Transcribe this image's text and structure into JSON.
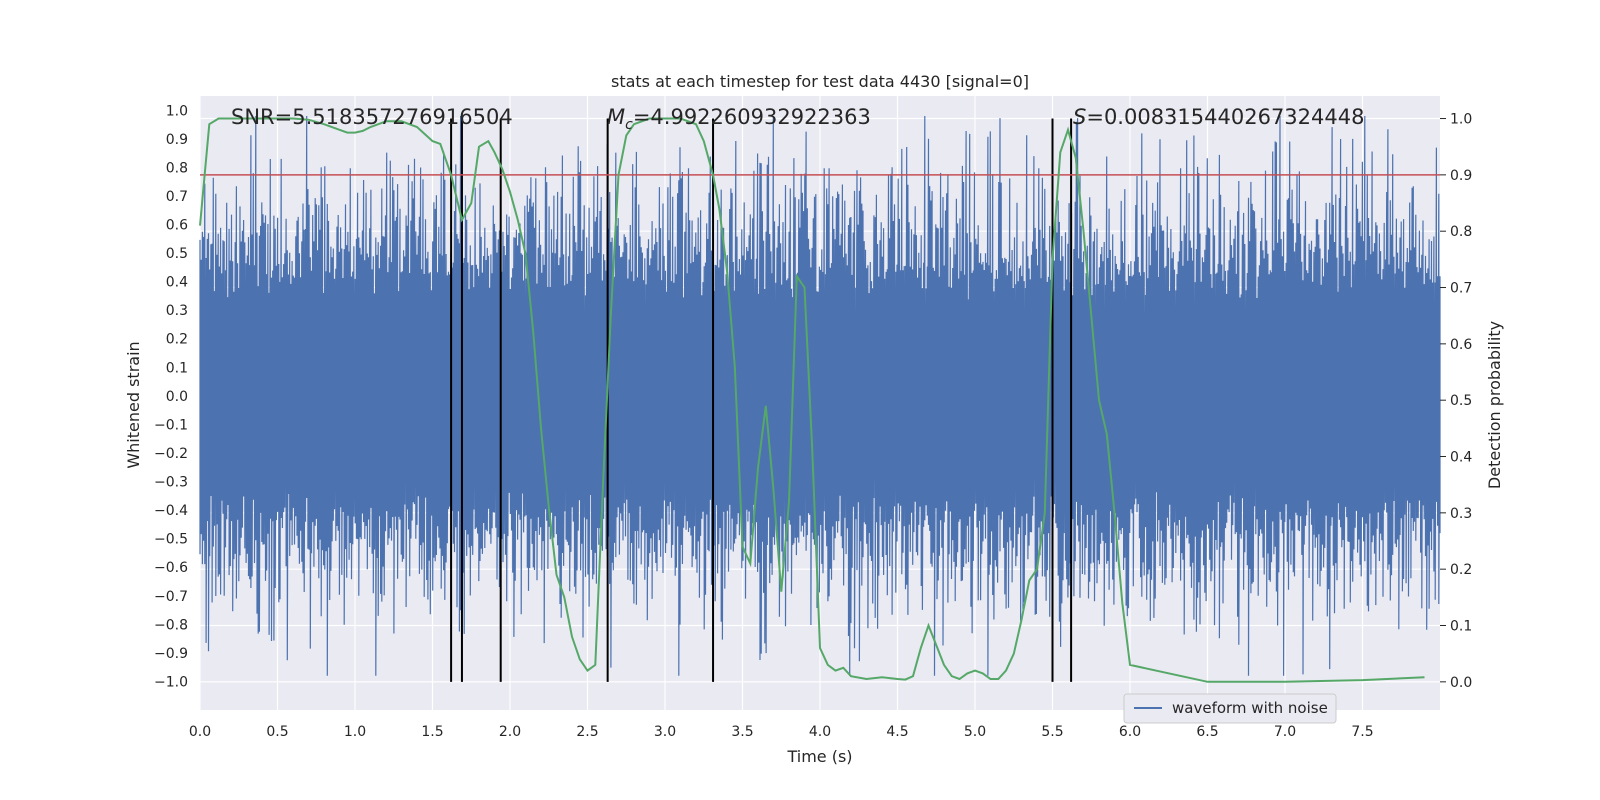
{
  "chart_data": {
    "type": "line",
    "title": "stats at each timestep for test data 4430 [signal=0]",
    "xlabel": "Time (s)",
    "ylabel_left": "Whitened strain",
    "ylabel_right": "Detection probability",
    "xlim": [
      0,
      8
    ],
    "ylim_left": [
      -1.1,
      1.05
    ],
    "ylim_right": [
      -0.05,
      1.04
    ],
    "xticks": [
      "0.0",
      "0.5",
      "1.0",
      "1.5",
      "2.0",
      "2.5",
      "3.0",
      "3.5",
      "4.0",
      "4.5",
      "5.0",
      "5.5",
      "6.0",
      "6.5",
      "7.0",
      "7.5"
    ],
    "yticks_left": [
      "1.0",
      "0.9",
      "0.8",
      "0.7",
      "0.6",
      "0.5",
      "0.4",
      "0.3",
      "0.2",
      "0.1",
      "0.0",
      "-0.1",
      "-0.2",
      "-0.3",
      "-0.4",
      "-0.5",
      "-0.6",
      "-0.7",
      "-0.8",
      "-0.9",
      "-1.0"
    ],
    "yticks_right": [
      "1.0",
      "0.9",
      "0.8",
      "0.7",
      "0.6",
      "0.5",
      "0.4",
      "0.3",
      "0.2",
      "0.1",
      "0.0"
    ],
    "grid": true,
    "legend": {
      "position": "lower-right",
      "entries": [
        "waveform with noise"
      ]
    },
    "stats_text": {
      "snr": "SNR=5.518357276916504",
      "mc_symbol": "M",
      "mc_subscript": "c",
      "mc_value": "=4.992260932922363",
      "s_symbol": "S",
      "s_value": "=0.008315440267324448"
    },
    "threshold_line": {
      "y_right": 0.9,
      "color": "#c44e52"
    },
    "vertical_markers_s": [
      1.62,
      1.69,
      1.94,
      2.63,
      3.31,
      5.5,
      5.62
    ],
    "series": [
      {
        "name": "waveform with noise",
        "axis": "left",
        "color": "#4c72b0",
        "kind": "noise_band",
        "typical_amplitude": 0.6,
        "max_abs": 0.98,
        "n_samples": 1024
      },
      {
        "axis": "right",
        "color": "#55a868",
        "x": [
          0.0,
          0.06,
          0.12,
          0.2,
          0.3,
          0.4,
          0.5,
          0.6,
          0.7,
          0.8,
          0.9,
          0.95,
          1.0,
          1.05,
          1.1,
          1.2,
          1.3,
          1.4,
          1.5,
          1.55,
          1.62,
          1.69,
          1.75,
          1.8,
          1.86,
          1.9,
          1.95,
          2.0,
          2.05,
          2.1,
          2.15,
          2.2,
          2.25,
          2.3,
          2.35,
          2.4,
          2.45,
          2.5,
          2.55,
          2.6,
          2.65,
          2.7,
          2.75,
          2.8,
          2.9,
          3.0,
          3.1,
          3.2,
          3.25,
          3.31,
          3.35,
          3.4,
          3.45,
          3.5,
          3.55,
          3.6,
          3.65,
          3.7,
          3.75,
          3.8,
          3.85,
          3.9,
          3.95,
          4.0,
          4.05,
          4.1,
          4.15,
          4.2,
          4.3,
          4.4,
          4.5,
          4.55,
          4.6,
          4.65,
          4.7,
          4.75,
          4.8,
          4.85,
          4.9,
          4.95,
          5.0,
          5.05,
          5.1,
          5.15,
          5.2,
          5.25,
          5.3,
          5.35,
          5.4,
          5.45,
          5.5,
          5.55,
          5.6,
          5.65,
          5.7,
          5.75,
          5.8,
          5.85,
          5.9,
          5.95,
          6.0,
          6.5,
          7.0,
          7.5,
          7.9
        ],
        "y": [
          0.81,
          0.99,
          1.0,
          1.0,
          1.0,
          1.0,
          1.0,
          1.0,
          0.998,
          0.99,
          0.98,
          0.975,
          0.975,
          0.978,
          0.985,
          0.995,
          0.995,
          0.985,
          0.96,
          0.955,
          0.9,
          0.82,
          0.85,
          0.95,
          0.96,
          0.94,
          0.91,
          0.87,
          0.82,
          0.76,
          0.62,
          0.45,
          0.31,
          0.19,
          0.15,
          0.08,
          0.04,
          0.02,
          0.03,
          0.35,
          0.65,
          0.9,
          0.97,
          0.99,
          1.0,
          1.0,
          1.0,
          0.99,
          0.96,
          0.9,
          0.84,
          0.73,
          0.56,
          0.24,
          0.21,
          0.38,
          0.49,
          0.34,
          0.16,
          0.32,
          0.72,
          0.7,
          0.41,
          0.06,
          0.03,
          0.02,
          0.025,
          0.01,
          0.005,
          0.008,
          0.005,
          0.004,
          0.01,
          0.06,
          0.1,
          0.065,
          0.03,
          0.01,
          0.005,
          0.015,
          0.02,
          0.015,
          0.005,
          0.005,
          0.02,
          0.05,
          0.11,
          0.18,
          0.2,
          0.3,
          0.75,
          0.94,
          0.98,
          0.93,
          0.8,
          0.65,
          0.5,
          0.44,
          0.3,
          0.14,
          0.03,
          0.0,
          0.0,
          0.003,
          0.008
        ]
      }
    ]
  }
}
